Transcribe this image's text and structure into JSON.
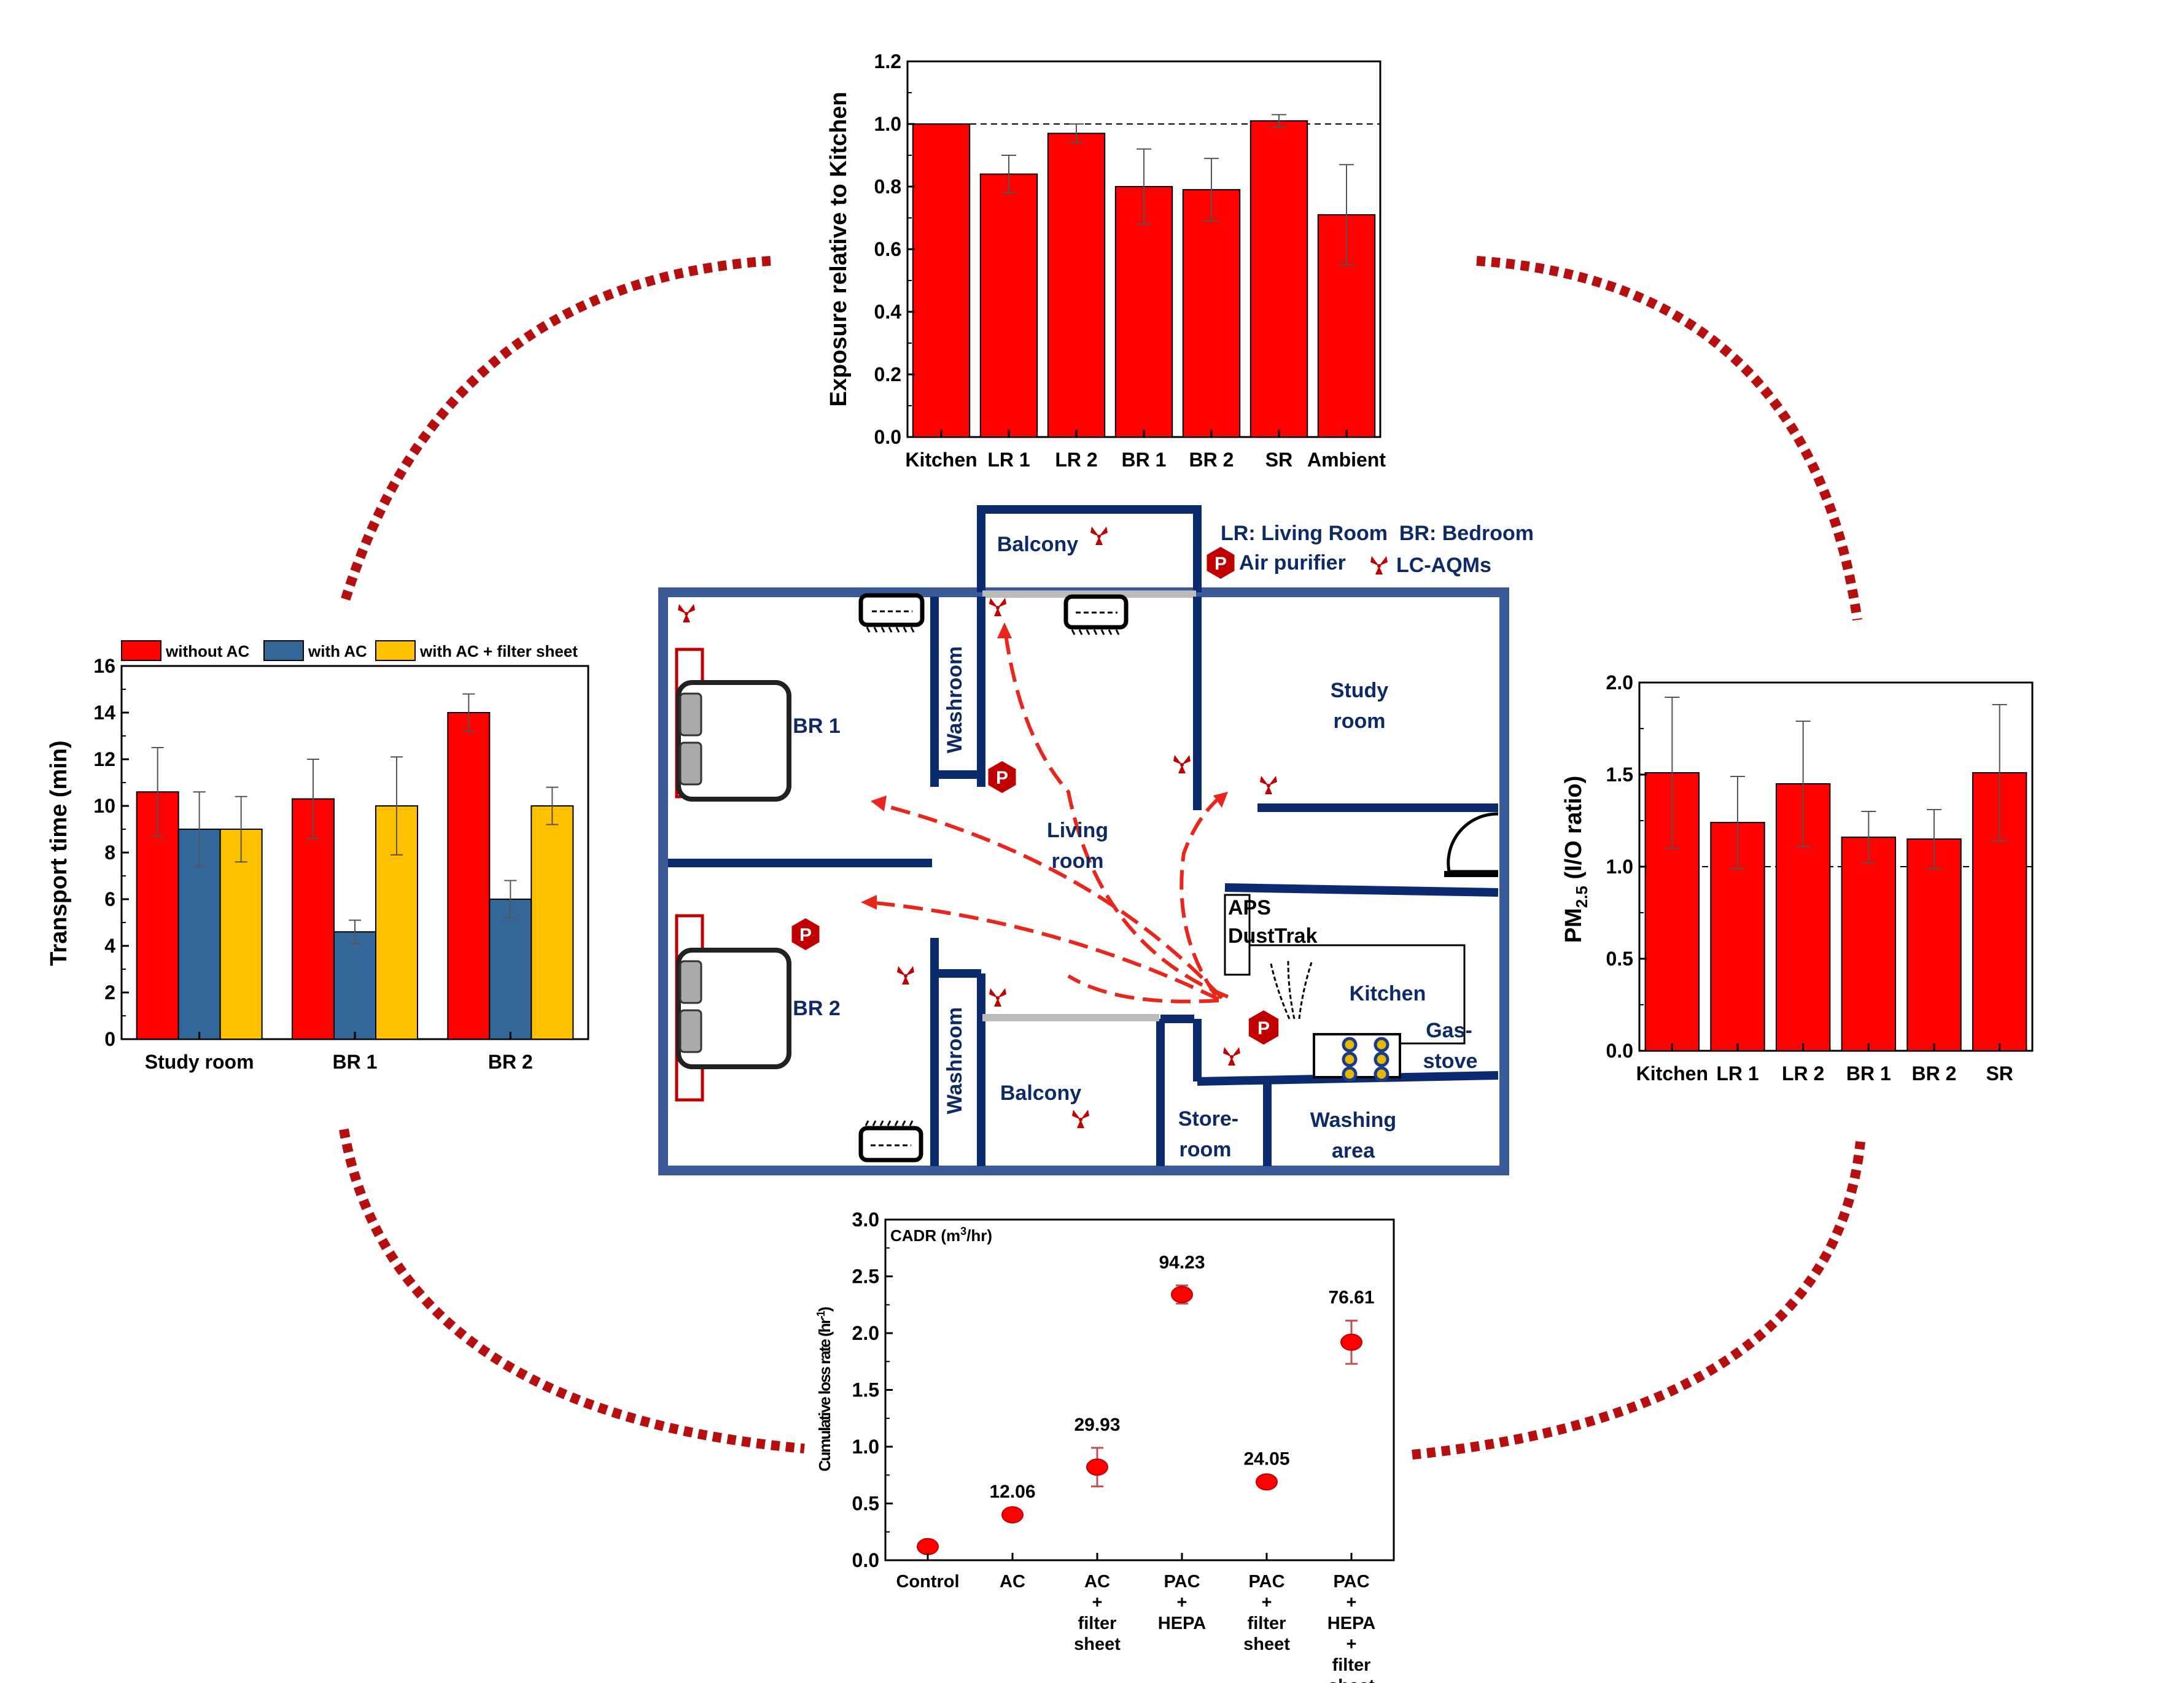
{
  "colors": {
    "red": "#ff0000",
    "blue": "#336699",
    "yellow": "#ffc000",
    "wall_blue": "#3b5a9a",
    "navy": "#0b2a6f",
    "label_navy": "#0d2a66",
    "dash_red": "#b50f0f",
    "grey": "#bbbbbb"
  },
  "chart_data": [
    {
      "id": "exposure",
      "type": "bar",
      "categories": [
        "Kitchen",
        "LR 1",
        "LR 2",
        "BR 1",
        "BR 2",
        "SR",
        "Ambient"
      ],
      "values": [
        1.0,
        0.84,
        0.97,
        0.8,
        0.79,
        1.01,
        0.71
      ],
      "errors": [
        0.0,
        0.06,
        0.03,
        0.12,
        0.1,
        0.02,
        0.16
      ],
      "ylabel": "Exposure relative to Kitchen",
      "ylim": [
        0,
        1.2
      ],
      "yticks": [
        "0.0",
        "0.2",
        "0.4",
        "0.6",
        "0.8",
        "1.0",
        "1.2"
      ],
      "reference_line": 1.0
    },
    {
      "id": "io_ratio",
      "type": "bar",
      "categories": [
        "Kitchen",
        "LR 1",
        "LR 2",
        "BR 1",
        "BR 2",
        "SR"
      ],
      "values": [
        1.51,
        1.24,
        1.45,
        1.16,
        1.15,
        1.51
      ],
      "errors": [
        0.41,
        0.25,
        0.34,
        0.14,
        0.16,
        0.37
      ],
      "ylabel": "PM",
      "ylabel_sub": "2.5",
      "ylabel_rest": " (I/O ratio)",
      "ylim": [
        0,
        2.0
      ],
      "yticks": [
        "0.0",
        "0.5",
        "1.0",
        "1.5",
        "2.0"
      ],
      "reference_line": 1.0
    },
    {
      "id": "transport",
      "type": "bar",
      "categories": [
        "Study room",
        "BR 1",
        "BR 2"
      ],
      "series": [
        {
          "name": "without AC",
          "values": [
            10.6,
            10.3,
            14.0
          ],
          "errors": [
            1.9,
            1.7,
            0.8
          ]
        },
        {
          "name": "with AC",
          "values": [
            9.0,
            4.6,
            6.0
          ],
          "errors": [
            1.6,
            0.5,
            0.8
          ]
        },
        {
          "name": "with AC + filter sheet",
          "values": [
            9.0,
            10.0,
            10.0
          ],
          "errors": [
            1.4,
            2.1,
            0.8
          ]
        }
      ],
      "ylabel": "Transport time (min)",
      "ylim": [
        0,
        16
      ],
      "yticks": [
        "0",
        "2",
        "4",
        "6",
        "8",
        "10",
        "12",
        "14",
        "16"
      ],
      "legend": "top"
    },
    {
      "id": "loss_rate",
      "type": "scatter",
      "categories": [
        "Control",
        "AC",
        "AC + filter sheet",
        "PAC + HEPA",
        "PAC + filter sheet",
        "PAC + HEPA + filter sheet"
      ],
      "category_lines": [
        [
          "Control"
        ],
        [
          "AC"
        ],
        [
          "AC",
          "+",
          "filter",
          "sheet"
        ],
        [
          "PAC",
          "+",
          "HEPA"
        ],
        [
          "PAC",
          "+",
          "filter",
          "sheet"
        ],
        [
          "PAC",
          "+",
          "HEPA",
          "+",
          "filter",
          "sheet"
        ]
      ],
      "values": [
        0.12,
        0.4,
        0.82,
        2.34,
        0.69,
        1.92
      ],
      "errors": [
        0.0,
        0.0,
        0.17,
        0.08,
        0.0,
        0.19
      ],
      "labels": [
        "",
        "12.06",
        "29.93",
        "94.23",
        "24.05",
        "76.61"
      ],
      "annotation": "CADR (m",
      "annotation_sup": "3",
      "annotation_rest": "/hr)",
      "ylabel": "Cumulative loss rate (hr",
      "ylabel_sup": "-1",
      "ylabel_rest": ")",
      "ylim": [
        0,
        3.0
      ],
      "yticks": [
        "0.0",
        "0.5",
        "1.0",
        "1.5",
        "2.0",
        "2.5",
        "3.0"
      ]
    }
  ],
  "floorplan": {
    "legend_line1": "LR: Living Room  BR: Bedroom",
    "legend_line2": "Air purifier",
    "legend_line3": "LC-AQMs",
    "rooms": {
      "balcony_top": "Balcony",
      "br1": "BR 1",
      "washroom_top": "Washroom",
      "study1": "Study",
      "study2": "room",
      "living1": "Living",
      "living2": "room",
      "aps": "APS",
      "dusttrak": "DustTrak",
      "kitchen": "Kitchen",
      "gas1": "Gas-",
      "gas2": "stove",
      "br2": "BR 2",
      "washroom_bottom": "Washroom",
      "balcony_bottom": "Balcony",
      "store1": "Store-",
      "store2": "room",
      "washing1": "Washing",
      "washing2": "area"
    },
    "purifier_symbol": "P"
  }
}
